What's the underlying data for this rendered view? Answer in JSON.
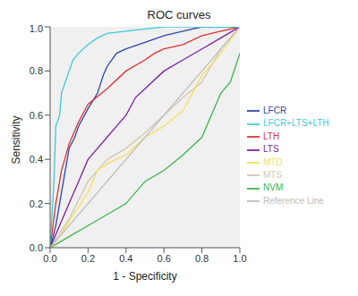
{
  "chart_data": {
    "type": "line",
    "title": "ROC curves",
    "x_label": "1 - Specificity",
    "y_label": "Sensitivity",
    "xlim": [
      0,
      1
    ],
    "ylim": [
      0,
      1
    ],
    "xticks": [
      {
        "value": 0,
        "label": "0.0"
      },
      0.2,
      0.4,
      0.6,
      0.8,
      {
        "value": 1,
        "label": "1.0"
      }
    ],
    "yticks": [
      {
        "value": 0,
        "label": "0.0"
      },
      0.2,
      0.4,
      0.6,
      0.8,
      {
        "value": 1,
        "label": "1.0"
      }
    ],
    "grid": false,
    "legend": "right",
    "series": [
      {
        "name": "LFCR",
        "color": "#2b45a6",
        "x": [
          0,
          0.03,
          0.05,
          0.08,
          0.1,
          0.13,
          0.15,
          0.2,
          0.25,
          0.28,
          0.3,
          0.35,
          0.4,
          0.5,
          0.6,
          0.7,
          0.8,
          1
        ],
        "values": [
          0,
          0.1,
          0.2,
          0.35,
          0.45,
          0.5,
          0.55,
          0.63,
          0.7,
          0.78,
          0.82,
          0.88,
          0.9,
          0.93,
          0.96,
          0.98,
          1,
          1
        ]
      },
      {
        "name": "NVM",
        "color": "#3cb44b",
        "x": [
          0,
          0.1,
          0.2,
          0.3,
          0.4,
          0.5,
          0.6,
          0.7,
          0.8,
          0.85,
          0.9,
          0.95,
          1
        ],
        "values": [
          0,
          0.05,
          0.1,
          0.15,
          0.2,
          0.3,
          0.35,
          0.42,
          0.5,
          0.6,
          0.7,
          0.75,
          0.88
        ]
      },
      {
        "name": "MTS",
        "color": "#d2c6ae",
        "x": [
          0,
          0.1,
          0.2,
          0.3,
          0.4,
          0.5,
          0.6,
          0.7,
          0.8,
          0.9,
          1
        ],
        "values": [
          0,
          0.13,
          0.3,
          0.4,
          0.45,
          0.52,
          0.6,
          0.68,
          0.75,
          0.9,
          1
        ]
      },
      {
        "name": "LTS",
        "color": "#7a1fa2",
        "x": [
          0,
          0.05,
          0.1,
          0.15,
          0.2,
          0.25,
          0.3,
          0.35,
          0.4,
          0.45,
          0.5,
          0.6,
          0.7,
          0.8,
          0.9,
          1
        ],
        "values": [
          0,
          0.1,
          0.2,
          0.3,
          0.4,
          0.45,
          0.5,
          0.55,
          0.6,
          0.68,
          0.72,
          0.8,
          0.85,
          0.9,
          0.95,
          1
        ]
      },
      {
        "name": "MTD",
        "color": "#f2e05a",
        "x": [
          0,
          0.05,
          0.1,
          0.2,
          0.25,
          0.3,
          0.4,
          0.5,
          0.6,
          0.7,
          0.75,
          0.8,
          0.9,
          1
        ],
        "values": [
          0,
          0.05,
          0.12,
          0.25,
          0.35,
          0.38,
          0.42,
          0.5,
          0.55,
          0.62,
          0.7,
          0.78,
          0.88,
          1
        ]
      },
      {
        "name": "LTH",
        "color": "#e03030",
        "x": [
          0,
          0.03,
          0.06,
          0.1,
          0.15,
          0.2,
          0.3,
          0.4,
          0.5,
          0.55,
          0.6,
          0.7,
          0.8,
          0.9,
          1
        ],
        "values": [
          0,
          0.2,
          0.35,
          0.47,
          0.57,
          0.65,
          0.72,
          0.8,
          0.85,
          0.88,
          0.9,
          0.92,
          0.96,
          0.98,
          1
        ]
      },
      {
        "name": "LFCR+LTS+LTH",
        "color": "#3fc8d8",
        "x": [
          0,
          0.02,
          0.03,
          0.05,
          0.06,
          0.08,
          0.1,
          0.12,
          0.15,
          0.2,
          0.25,
          0.3,
          0.4,
          0.5,
          0.6,
          1
        ],
        "values": [
          0,
          0.3,
          0.55,
          0.6,
          0.7,
          0.75,
          0.8,
          0.85,
          0.88,
          0.92,
          0.95,
          0.97,
          0.98,
          0.99,
          1,
          1
        ]
      },
      {
        "name": "Reference Line",
        "color": "#bdbdbd",
        "x": [
          0,
          1
        ],
        "values": [
          0,
          1
        ]
      }
    ]
  }
}
